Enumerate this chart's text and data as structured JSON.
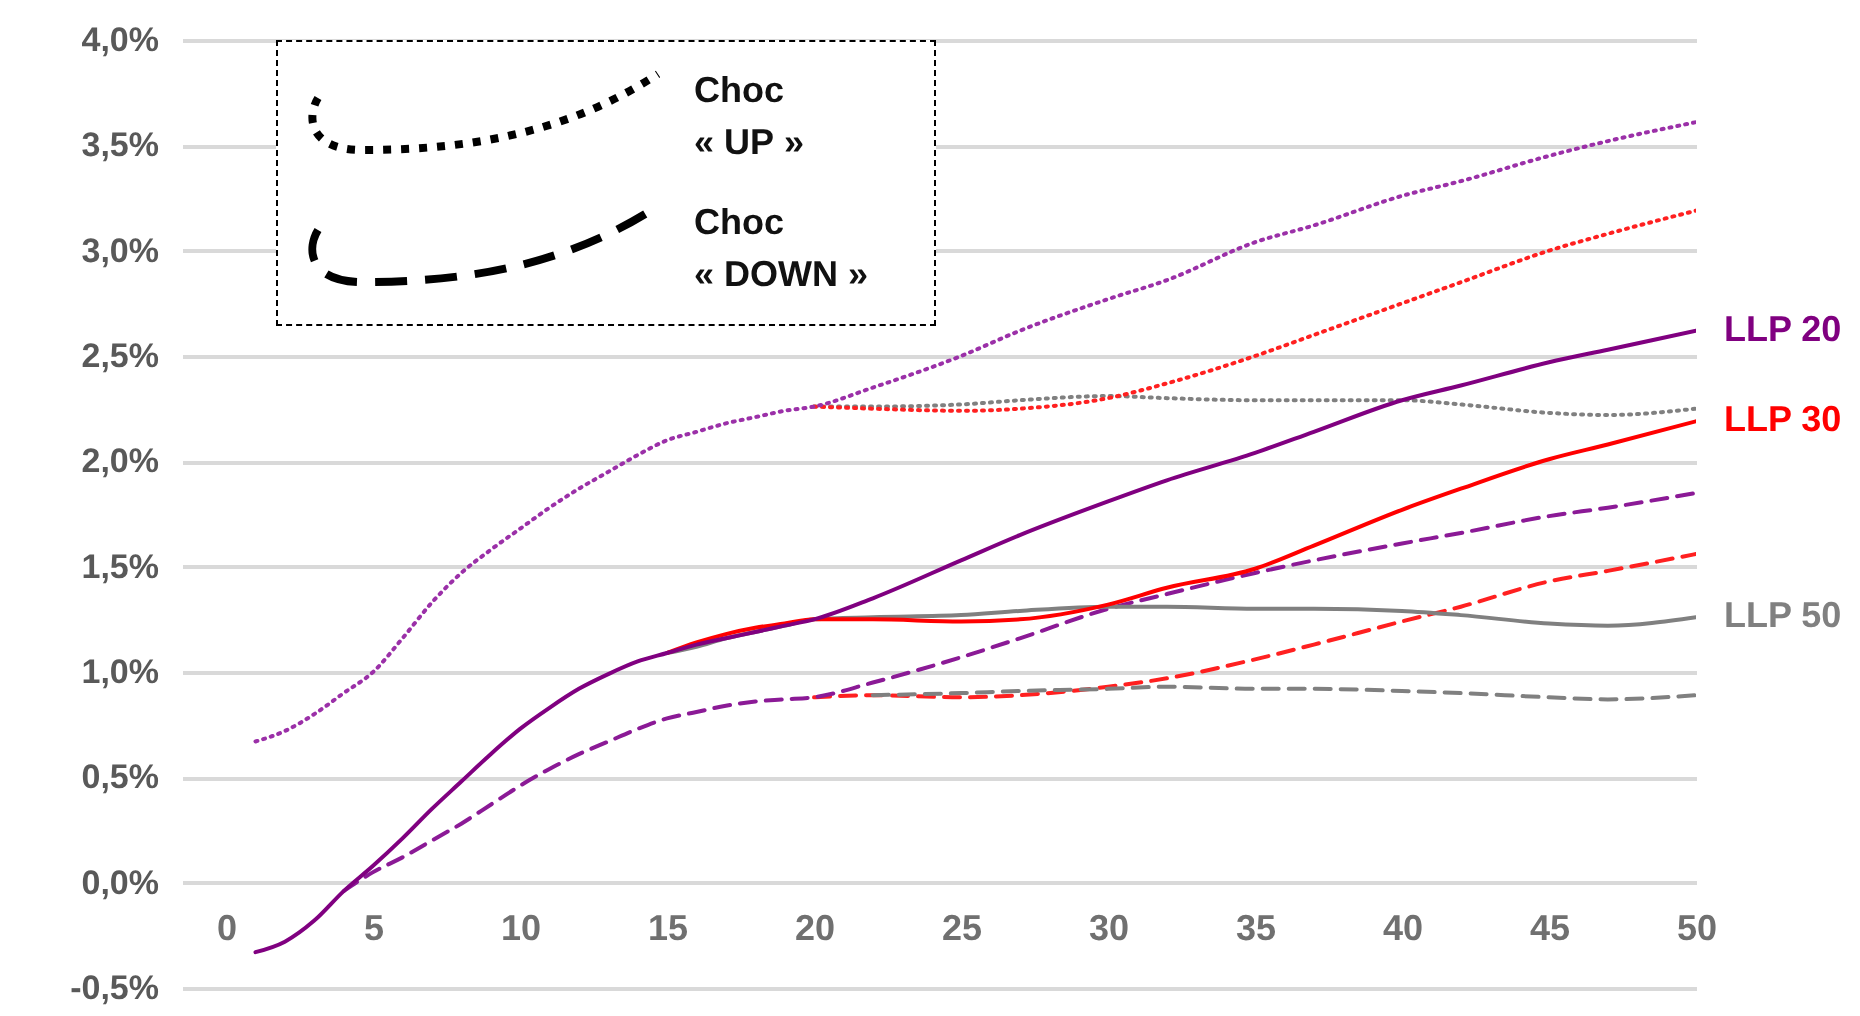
{
  "chart_data": {
    "type": "line",
    "x": [
      1,
      2,
      3,
      4,
      5,
      6,
      7,
      8,
      9,
      10,
      11,
      12,
      13,
      14,
      15,
      16,
      17,
      18,
      19,
      20,
      22,
      25,
      27,
      30,
      32,
      35,
      37,
      40,
      42,
      45,
      47,
      50
    ],
    "series": [
      {
        "color": "#808080",
        "line_style": "dotted",
        "values": [
          null,
          null,
          null,
          null,
          null,
          null,
          null,
          null,
          null,
          null,
          null,
          null,
          null,
          null,
          null,
          null,
          null,
          null,
          null,
          2.26,
          2.26,
          2.27,
          2.29,
          2.31,
          2.3,
          2.29,
          2.29,
          2.29,
          2.27,
          2.23,
          2.22,
          2.25
        ]
      },
      {
        "color": "#ff2020",
        "line_style": "dotted",
        "values": [
          null,
          null,
          null,
          null,
          null,
          null,
          null,
          null,
          null,
          null,
          null,
          null,
          null,
          null,
          null,
          null,
          null,
          null,
          null,
          2.26,
          2.25,
          2.24,
          2.25,
          2.3,
          2.37,
          2.5,
          2.6,
          2.75,
          2.85,
          3.0,
          3.08,
          3.19
        ]
      },
      {
        "color": "#9b30a8",
        "line_style": "dotted",
        "values": [
          0.67,
          0.72,
          0.8,
          0.9,
          1.0,
          1.16,
          1.33,
          1.47,
          1.58,
          1.68,
          1.78,
          1.87,
          1.95,
          2.03,
          2.1,
          2.14,
          2.18,
          2.21,
          2.24,
          2.26,
          2.35,
          2.5,
          2.62,
          2.77,
          2.86,
          3.04,
          3.12,
          3.26,
          3.33,
          3.45,
          3.52,
          3.61
        ]
      },
      {
        "color": "#ff2020",
        "line_style": "dashed",
        "values": [
          null,
          null,
          null,
          null,
          null,
          null,
          null,
          null,
          null,
          null,
          null,
          null,
          null,
          null,
          null,
          null,
          null,
          null,
          null,
          0.88,
          0.89,
          0.88,
          0.89,
          0.93,
          0.97,
          1.06,
          1.13,
          1.24,
          1.31,
          1.43,
          1.48,
          1.56
        ]
      },
      {
        "color": "#808080",
        "line_style": "dashed",
        "values": [
          null,
          null,
          null,
          null,
          null,
          null,
          null,
          null,
          null,
          null,
          null,
          null,
          null,
          null,
          null,
          null,
          null,
          null,
          null,
          null,
          0.89,
          0.9,
          0.91,
          0.92,
          0.93,
          0.92,
          0.92,
          0.91,
          0.9,
          0.88,
          0.87,
          0.89
        ]
      },
      {
        "color": "#8b1a96",
        "line_style": "dashed",
        "values": [
          null,
          null,
          null,
          -0.04,
          0.05,
          0.12,
          0.2,
          0.28,
          0.37,
          0.46,
          0.54,
          0.61,
          0.67,
          0.73,
          0.78,
          0.81,
          0.84,
          0.86,
          0.87,
          0.88,
          0.95,
          1.07,
          1.16,
          1.3,
          1.37,
          1.47,
          1.53,
          1.61,
          1.66,
          1.74,
          1.78,
          1.85
        ]
      },
      {
        "name": "LLP 50",
        "color": "#808080",
        "line_style": "solid",
        "values": [
          null,
          null,
          null,
          null,
          null,
          null,
          null,
          null,
          null,
          null,
          null,
          null,
          null,
          null,
          1.09,
          1.12,
          1.16,
          1.19,
          1.22,
          1.25,
          1.26,
          1.27,
          1.29,
          1.31,
          1.31,
          1.3,
          1.3,
          1.29,
          1.27,
          1.23,
          1.22,
          1.26
        ]
      },
      {
        "name": "LLP 30",
        "color": "#ff0000",
        "line_style": "solid",
        "values": [
          null,
          null,
          null,
          null,
          null,
          null,
          null,
          null,
          null,
          null,
          null,
          null,
          null,
          null,
          1.09,
          1.14,
          1.18,
          1.21,
          1.23,
          1.25,
          1.25,
          1.24,
          1.25,
          1.32,
          1.4,
          1.49,
          1.6,
          1.77,
          1.87,
          2.01,
          2.08,
          2.19
        ]
      },
      {
        "name": "LLP 20",
        "color": "#800080",
        "line_style": "solid",
        "values": [
          -0.33,
          -0.28,
          -0.18,
          -0.04,
          0.08,
          0.21,
          0.35,
          0.48,
          0.61,
          0.73,
          0.83,
          0.92,
          0.99,
          1.05,
          1.09,
          1.13,
          1.16,
          1.19,
          1.22,
          1.25,
          1.35,
          1.53,
          1.65,
          1.81,
          1.91,
          2.04,
          2.14,
          2.29,
          2.36,
          2.47,
          2.53,
          2.62
        ]
      }
    ],
    "xlim": [
      -1.5,
      50
    ],
    "ylim": [
      -0.5,
      4
    ],
    "xticks": [
      0,
      5,
      10,
      15,
      20,
      25,
      30,
      35,
      40,
      45,
      50
    ],
    "yticks": [
      {
        "value": -0.5,
        "label": "-0,5%"
      },
      {
        "value": 0,
        "label": "0,0%"
      },
      {
        "value": 0.5,
        "label": "0,5%"
      },
      {
        "value": 1,
        "label": "1,0%"
      },
      {
        "value": 1.5,
        "label": "1,5%"
      },
      {
        "value": 2,
        "label": "2,0%"
      },
      {
        "value": 2.5,
        "label": "2,5%"
      },
      {
        "value": 3,
        "label": "3,0%"
      },
      {
        "value": 3.5,
        "label": "3,5%"
      },
      {
        "value": 4,
        "label": "4,0%"
      }
    ],
    "grid": "y",
    "annotations": [
      "Choc « UP »",
      "Choc « DOWN »"
    ]
  }
}
